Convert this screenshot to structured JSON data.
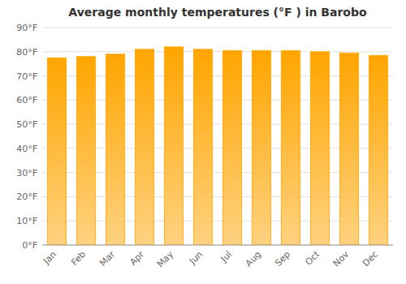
{
  "chart_data": {
    "type": "bar",
    "title": "Average monthly temperatures (°F ) in Barobo",
    "categories": [
      "Jan",
      "Feb",
      "Mar",
      "Apr",
      "May",
      "Jun",
      "Jul",
      "Aug",
      "Sep",
      "Oct",
      "Nov",
      "Dec"
    ],
    "values": [
      77.5,
      78.0,
      79.0,
      81.0,
      82.0,
      81.0,
      80.5,
      80.5,
      80.5,
      80.0,
      79.5,
      78.5
    ],
    "color": "#FFA500",
    "ylim": [
      0,
      90
    ],
    "yticks": [
      {
        "value": 0,
        "label": "0°F"
      },
      {
        "value": 10,
        "label": "10°F"
      },
      {
        "value": 20,
        "label": "20°F"
      },
      {
        "value": 30,
        "label": "30°F"
      },
      {
        "value": 40,
        "label": "40°F"
      },
      {
        "value": 50,
        "label": "50°F"
      },
      {
        "value": 60,
        "label": "60°F"
      },
      {
        "value": 70,
        "label": "70°F"
      },
      {
        "value": 80,
        "label": "80°F"
      },
      {
        "value": 90,
        "label": "90°F"
      }
    ],
    "grid": true
  }
}
